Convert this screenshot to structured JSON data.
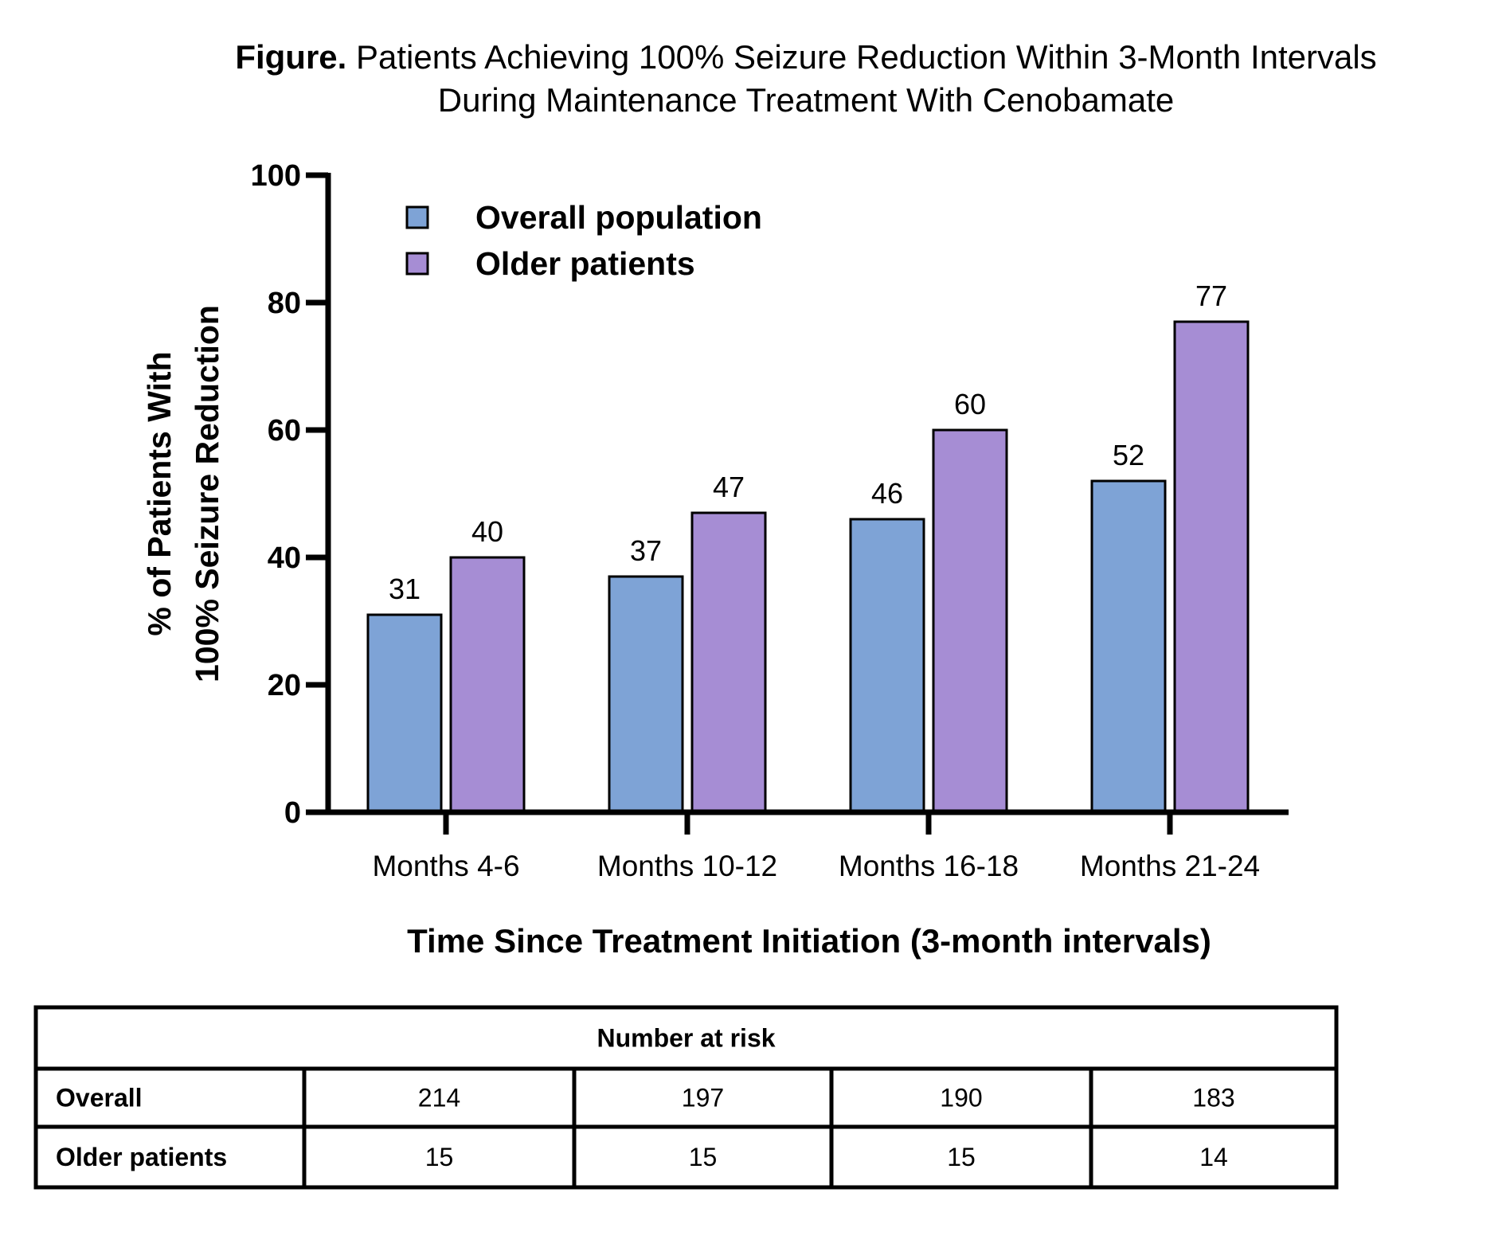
{
  "chart_data": {
    "type": "bar",
    "title_prefix": "Figure.",
    "title_line1": "Patients Achieving 100% Seizure Reduction Within 3-Month Intervals",
    "title_line2": "During Maintenance Treatment With Cenobamate",
    "xlabel": "Time Since Treatment Initiation (3-month intervals)",
    "ylabel_line1": "% of Patients With",
    "ylabel_line2": "100% Seizure Reduction",
    "ylim": [
      0,
      100
    ],
    "yticks": [
      0,
      20,
      40,
      60,
      80,
      100
    ],
    "categories": [
      "Months 4-6",
      "Months 10-12",
      "Months 16-18",
      "Months 21-24"
    ],
    "series": [
      {
        "name": "Overall population",
        "values": [
          31,
          37,
          46,
          52
        ],
        "color": "#7ea3d6"
      },
      {
        "name": "Older patients",
        "values": [
          40,
          47,
          60,
          77
        ],
        "color": "#a68dd4"
      }
    ],
    "legend_placement": "top-left",
    "grid": false
  },
  "risk_table": {
    "header": "Number at risk",
    "rows": [
      {
        "label": "Overall",
        "values": [
          "214",
          "197",
          "190",
          "183"
        ]
      },
      {
        "label": "Older patients",
        "values": [
          "15",
          "15",
          "15",
          "14"
        ]
      }
    ]
  }
}
